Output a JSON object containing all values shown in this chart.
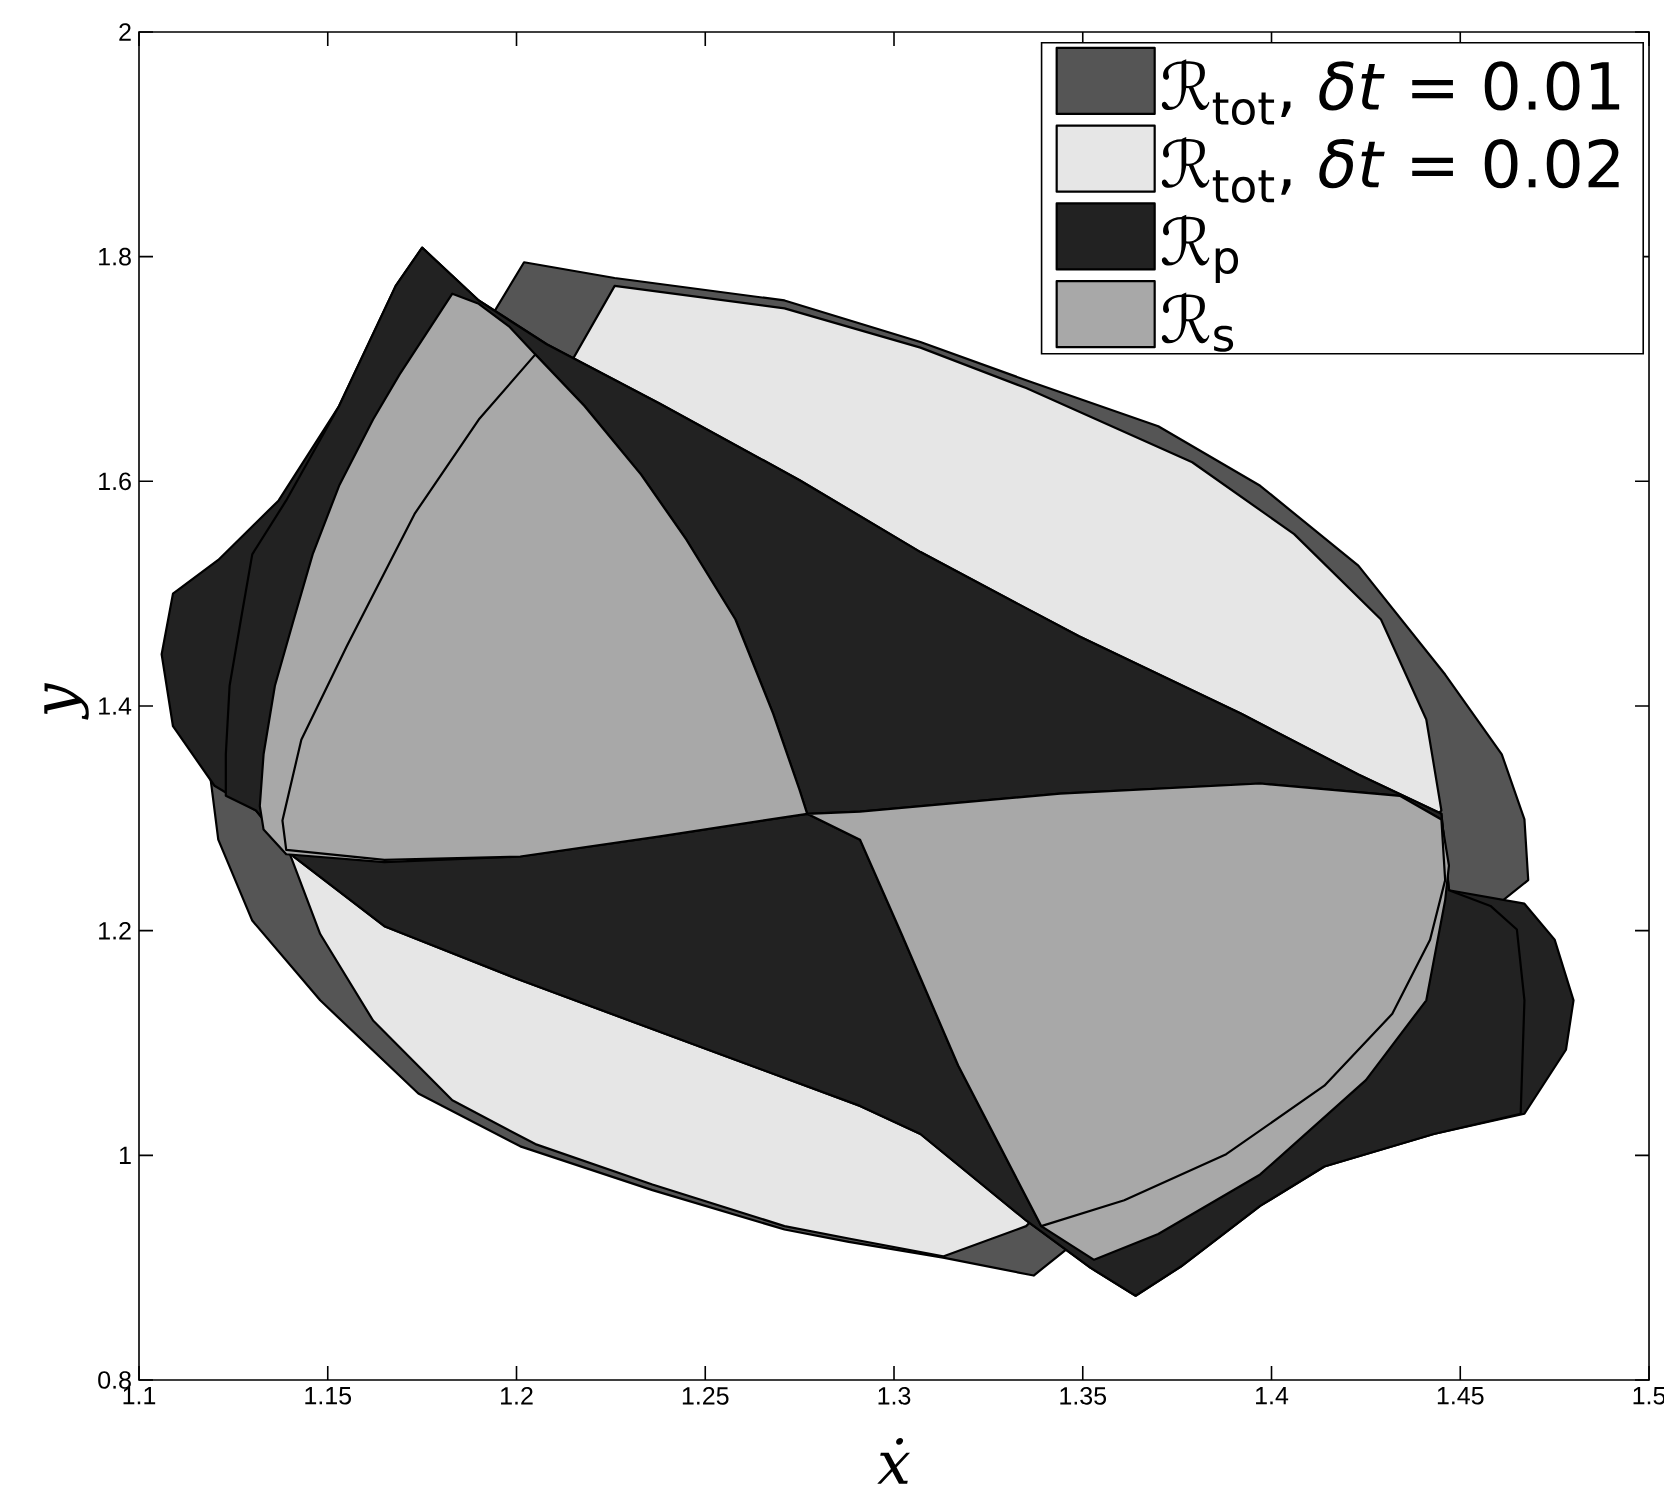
{
  "chart_data": {
    "type": "area",
    "xlabel": "ẋ",
    "ylabel": "y",
    "xlim": [
      1.1,
      1.5
    ],
    "ylim": [
      0.8,
      2
    ],
    "xticks": [
      1.1,
      1.15,
      1.2,
      1.25,
      1.3,
      1.35,
      1.4,
      1.45,
      1.5
    ],
    "yticks": [
      0.8,
      1,
      1.2,
      1.4,
      1.6,
      1.8,
      2
    ],
    "legend": "top right",
    "series": [
      {
        "name": "ℛ$_{tot}$, *δt* = 0.01",
        "color": "#555555",
        "x": [
          1.202,
          1.226,
          1.271,
          1.307,
          1.335,
          1.37,
          1.397,
          1.423,
          1.446,
          1.461,
          1.467,
          1.468,
          1.337,
          1.313,
          1.288,
          1.271,
          1.236,
          1.201,
          1.174,
          1.148,
          1.13,
          1.121,
          1.119
        ],
        "values": [
          1.795,
          1.781,
          1.761,
          1.724,
          1.69,
          1.649,
          1.596,
          1.525,
          1.428,
          1.357,
          1.299,
          1.245,
          0.893,
          0.909,
          0.923,
          0.934,
          0.969,
          1.008,
          1.055,
          1.138,
          1.209,
          1.281,
          1.334
        ]
      },
      {
        "name": "ℛ$_{tot}$, *δt* = 0.02",
        "color": "#e6e6e6",
        "x": [
          1.226,
          1.271,
          1.307,
          1.335,
          1.379,
          1.406,
          1.429,
          1.441,
          1.445,
          1.335,
          1.313,
          1.288,
          1.271,
          1.236,
          1.205,
          1.183,
          1.162,
          1.148,
          1.14
        ],
        "values": [
          1.774,
          1.754,
          1.719,
          1.683,
          1.617,
          1.553,
          1.477,
          1.388,
          1.307,
          0.937,
          0.91,
          0.926,
          0.937,
          0.974,
          1.01,
          1.049,
          1.12,
          1.197,
          1.268
        ]
      },
      {
        "name": "ℛ$_{p}$",
        "color": "#222222",
        "x": [
          1.175,
          1.19,
          1.208,
          1.238,
          1.275,
          1.307,
          1.349,
          1.392,
          1.423,
          1.445,
          1.447,
          1.467,
          1.475,
          1.48,
          1.478,
          1.467,
          1.443,
          1.414,
          1.397,
          1.376,
          1.364,
          1.352,
          1.335,
          1.307,
          1.291,
          1.254,
          1.201,
          1.165,
          1.141,
          1.131,
          1.12,
          1.109,
          1.106,
          1.109,
          1.121,
          1.137,
          1.153,
          1.168,
          null,
          1.175,
          1.19,
          1.208,
          1.238,
          1.275,
          1.307,
          1.349,
          1.392,
          1.423,
          1.445,
          1.447,
          1.458,
          1.465,
          1.467,
          1.466,
          1.443,
          1.414,
          1.397,
          1.376,
          1.364,
          1.352,
          1.335,
          1.307,
          1.291,
          1.254,
          1.201,
          1.165,
          1.141,
          1.131,
          1.123,
          1.123,
          1.124,
          1.127,
          1.13,
          1.139,
          1.153,
          1.168
        ],
        "values": [
          1.808,
          1.761,
          1.722,
          1.669,
          1.601,
          1.537,
          1.462,
          1.393,
          1.339,
          1.304,
          1.236,
          1.224,
          1.192,
          1.138,
          1.094,
          1.037,
          1.019,
          0.99,
          0.955,
          0.901,
          0.875,
          0.9,
          0.942,
          1.019,
          1.044,
          1.09,
          1.156,
          1.204,
          1.266,
          1.307,
          1.329,
          1.382,
          1.446,
          1.5,
          1.53,
          1.583,
          1.667,
          1.774,
          null,
          1.808,
          1.761,
          1.722,
          1.669,
          1.601,
          1.537,
          1.462,
          1.393,
          1.339,
          1.304,
          1.236,
          1.222,
          1.201,
          1.138,
          1.037,
          1.019,
          0.99,
          0.955,
          0.901,
          0.875,
          0.9,
          0.942,
          1.019,
          1.044,
          1.09,
          1.156,
          1.204,
          1.266,
          1.307,
          1.32,
          1.357,
          1.418,
          1.477,
          1.535,
          1.583,
          1.667,
          1.774
        ]
      },
      {
        "name": "ℛ$_{s}$",
        "color": "#a8a8a8",
        "x": [
          1.277,
          1.238,
          1.201,
          1.165,
          1.139,
          1.133,
          1.132,
          1.133,
          1.136,
          1.141,
          1.146,
          1.153,
          1.162,
          1.169,
          1.176,
          1.183,
          1.19,
          1.198,
          1.205,
          1.218,
          1.233,
          1.245,
          1.258,
          1.268,
          1.275,
          1.277,
          1.291,
          1.344,
          1.397,
          1.434,
          1.445,
          1.447,
          1.446,
          1.441,
          1.425,
          1.397,
          1.37,
          1.353,
          1.339,
          1.317,
          1.302,
          1.291,
          null,
          1.277,
          1.238,
          1.201,
          1.165,
          1.139,
          1.138,
          1.143,
          1.155,
          1.173,
          1.19,
          1.205,
          1.218,
          1.233,
          1.245,
          1.258,
          1.268,
          1.275,
          1.277,
          1.291,
          1.344,
          1.397,
          1.434,
          1.445,
          1.446,
          1.442,
          1.432,
          1.414,
          1.388,
          1.361,
          1.339,
          1.317,
          1.302,
          1.291
        ],
        "values": [
          1.304,
          1.284,
          1.266,
          1.261,
          1.268,
          1.29,
          1.311,
          1.357,
          1.418,
          1.477,
          1.535,
          1.596,
          1.655,
          1.695,
          1.731,
          1.767,
          1.758,
          1.738,
          1.713,
          1.667,
          1.606,
          1.548,
          1.477,
          1.393,
          1.325,
          1.304,
          1.306,
          1.322,
          1.331,
          1.32,
          1.299,
          1.258,
          1.227,
          1.138,
          1.067,
          0.983,
          0.93,
          0.907,
          0.937,
          1.08,
          1.197,
          1.281,
          null,
          1.304,
          1.284,
          1.266,
          1.263,
          1.272,
          1.298,
          1.37,
          1.453,
          1.571,
          1.655,
          1.713,
          1.667,
          1.606,
          1.548,
          1.477,
          1.393,
          1.325,
          1.304,
          1.306,
          1.322,
          1.331,
          1.32,
          1.299,
          1.245,
          1.192,
          1.126,
          1.062,
          1.001,
          0.96,
          0.937,
          1.08,
          1.197,
          1.281
        ]
      }
    ]
  }
}
